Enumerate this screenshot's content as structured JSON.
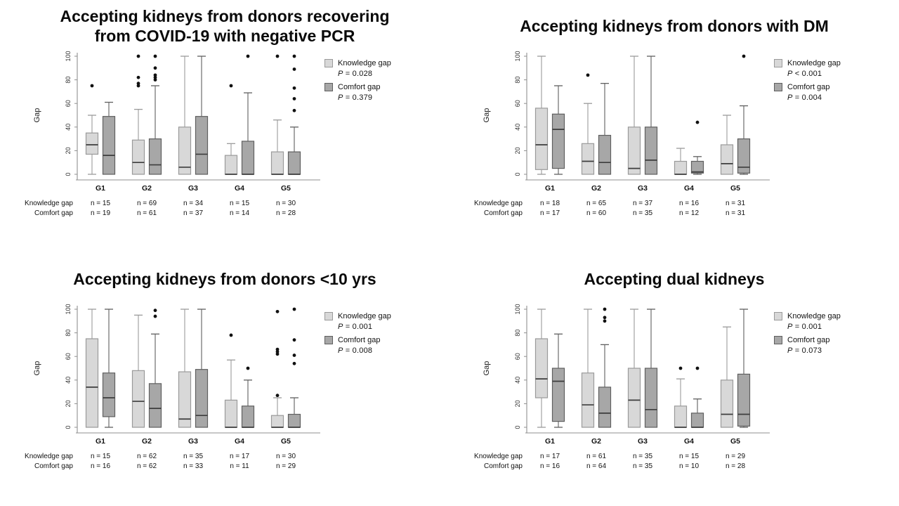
{
  "colors": {
    "knowledge_fill": "#d8d8d8",
    "knowledge_stroke": "#9a9a9a",
    "comfort_fill": "#a7a7a7",
    "comfort_stroke": "#5f5f5f",
    "median": "#3d3d3d",
    "outlier": "#111111",
    "axis": "#8f8f8f",
    "text": "#111111"
  },
  "chart_data": [
    {
      "type": "boxplot",
      "title": "Accepting kidneys from donors recovering from COVID-19 with negative PCR",
      "ylabel": "Gap",
      "ylim": [
        0,
        100
      ],
      "yticks": [
        0,
        20,
        40,
        60,
        80,
        100
      ],
      "grid": false,
      "legend_position": "right",
      "categories": [
        "G1",
        "G2",
        "G3",
        "G4",
        "G5"
      ],
      "series": [
        {
          "name": "Knowledge gap",
          "p_label": "P = 0.028",
          "n": [
            15,
            69,
            34,
            15,
            30
          ],
          "boxes": [
            {
              "low": 0,
              "q1": 17,
              "med": 25,
              "q3": 35,
              "high": 50,
              "outliers": [
                75
              ]
            },
            {
              "low": 0,
              "q1": 0,
              "med": 10,
              "q3": 29,
              "high": 55,
              "outliers": [
                75,
                77,
                82,
                100
              ]
            },
            {
              "low": 0,
              "q1": 0,
              "med": 6,
              "q3": 40,
              "high": 100,
              "outliers": []
            },
            {
              "low": 0,
              "q1": 0,
              "med": 0,
              "q3": 16,
              "high": 26,
              "outliers": [
                75
              ]
            },
            {
              "low": 0,
              "q1": 0,
              "med": 0,
              "q3": 19,
              "high": 46,
              "outliers": [
                100
              ]
            }
          ]
        },
        {
          "name": "Comfort gap",
          "p_label": "P = 0.379",
          "n": [
            19,
            61,
            37,
            14,
            28
          ],
          "boxes": [
            {
              "low": 0,
              "q1": 0,
              "med": 16,
              "q3": 49,
              "high": 61,
              "outliers": []
            },
            {
              "low": 0,
              "q1": 0,
              "med": 8,
              "q3": 30,
              "high": 75,
              "outliers": [
                80,
                82,
                84,
                90,
                100
              ]
            },
            {
              "low": 0,
              "q1": 0,
              "med": 17,
              "q3": 49,
              "high": 100,
              "outliers": []
            },
            {
              "low": 0,
              "q1": 0,
              "med": 0,
              "q3": 28,
              "high": 69,
              "outliers": [
                100
              ]
            },
            {
              "low": 0,
              "q1": 0,
              "med": 0,
              "q3": 19,
              "high": 40,
              "outliers": [
                54,
                64,
                73,
                89,
                100
              ]
            }
          ]
        }
      ],
      "n_rows": [
        {
          "label": "Knowledge gap",
          "values": [
            "n = 15",
            "n = 69",
            "n = 34",
            "n = 15",
            "n = 30"
          ]
        },
        {
          "label": "Comfort gap",
          "values": [
            "n = 19",
            "n = 61",
            "n = 37",
            "n = 14",
            "n = 28"
          ]
        }
      ]
    },
    {
      "type": "boxplot",
      "title": "Accepting kidneys from donors with DM",
      "ylabel": "Gap",
      "ylim": [
        0,
        100
      ],
      "yticks": [
        0,
        20,
        40,
        60,
        80,
        100
      ],
      "grid": false,
      "legend_position": "right",
      "categories": [
        "G1",
        "G2",
        "G3",
        "G4",
        "G5"
      ],
      "series": [
        {
          "name": "Knowledge gap",
          "p_label": "P < 0.001",
          "n": [
            18,
            65,
            37,
            16,
            31
          ],
          "boxes": [
            {
              "low": 0,
              "q1": 4,
              "med": 25,
              "q3": 56,
              "high": 100,
              "outliers": []
            },
            {
              "low": 0,
              "q1": 0,
              "med": 11,
              "q3": 26,
              "high": 60,
              "outliers": [
                84
              ]
            },
            {
              "low": 0,
              "q1": 0,
              "med": 5,
              "q3": 40,
              "high": 100,
              "outliers": []
            },
            {
              "low": 0,
              "q1": 0,
              "med": 0,
              "q3": 11,
              "high": 22,
              "outliers": []
            },
            {
              "low": 0,
              "q1": 0,
              "med": 9,
              "q3": 25,
              "high": 50,
              "outliers": []
            }
          ]
        },
        {
          "name": "Comfort gap",
          "p_label": "P = 0.004",
          "n": [
            17,
            60,
            35,
            12,
            31
          ],
          "boxes": [
            {
              "low": 0,
              "q1": 5,
              "med": 38,
              "q3": 51,
              "high": 75,
              "outliers": []
            },
            {
              "low": 0,
              "q1": 0,
              "med": 10,
              "q3": 33,
              "high": 77,
              "outliers": []
            },
            {
              "low": 0,
              "q1": 0,
              "med": 12,
              "q3": 40,
              "high": 100,
              "outliers": []
            },
            {
              "low": 0,
              "q1": 1,
              "med": 2,
              "q3": 11,
              "high": 15,
              "outliers": [
                44
              ]
            },
            {
              "low": 0,
              "q1": 1,
              "med": 6,
              "q3": 30,
              "high": 58,
              "outliers": [
                100
              ]
            }
          ]
        }
      ],
      "n_rows": [
        {
          "label": "Knowledge gap",
          "values": [
            "n = 18",
            "n = 65",
            "n = 37",
            "n = 16",
            "n = 31"
          ]
        },
        {
          "label": "Comfort gap",
          "values": [
            "n = 17",
            "n = 60",
            "n = 35",
            "n = 12",
            "n = 31"
          ]
        }
      ]
    },
    {
      "type": "boxplot",
      "title": "Accepting kidneys from donors <10 yrs",
      "ylabel": "Gap",
      "ylim": [
        0,
        100
      ],
      "yticks": [
        0,
        20,
        40,
        60,
        80,
        100
      ],
      "grid": false,
      "legend_position": "right",
      "categories": [
        "G1",
        "G2",
        "G3",
        "G4",
        "G5"
      ],
      "series": [
        {
          "name": "Knowledge gap",
          "p_label": "P = 0.001",
          "n": [
            15,
            62,
            35,
            17,
            30
          ],
          "boxes": [
            {
              "low": 0,
              "q1": 0,
              "med": 34,
              "q3": 75,
              "high": 100,
              "outliers": []
            },
            {
              "low": 0,
              "q1": 0,
              "med": 22,
              "q3": 48,
              "high": 95,
              "outliers": []
            },
            {
              "low": 0,
              "q1": 0,
              "med": 7,
              "q3": 47,
              "high": 100,
              "outliers": []
            },
            {
              "low": 0,
              "q1": 0,
              "med": 0,
              "q3": 23,
              "high": 57,
              "outliers": [
                78
              ]
            },
            {
              "low": 0,
              "q1": 0,
              "med": 0,
              "q3": 10,
              "high": 25,
              "outliers": [
                27,
                62,
                64,
                66,
                98
              ]
            }
          ]
        },
        {
          "name": "Comfort gap",
          "p_label": "P = 0.008",
          "n": [
            16,
            62,
            33,
            11,
            29
          ],
          "boxes": [
            {
              "low": 0,
              "q1": 9,
              "med": 25,
              "q3": 46,
              "high": 100,
              "outliers": []
            },
            {
              "low": 0,
              "q1": 0,
              "med": 16,
              "q3": 37,
              "high": 79,
              "outliers": [
                94,
                99
              ]
            },
            {
              "low": 0,
              "q1": 0,
              "med": 10,
              "q3": 49,
              "high": 100,
              "outliers": []
            },
            {
              "low": 0,
              "q1": 0,
              "med": 0,
              "q3": 18,
              "high": 40,
              "outliers": [
                50
              ]
            },
            {
              "low": 0,
              "q1": 0,
              "med": 0,
              "q3": 11,
              "high": 25,
              "outliers": [
                54,
                61,
                74,
                100
              ]
            }
          ]
        }
      ],
      "n_rows": [
        {
          "label": "Knowledge gap",
          "values": [
            "n = 15",
            "n = 62",
            "n = 35",
            "n = 17",
            "n = 30"
          ]
        },
        {
          "label": "Comfort gap",
          "values": [
            "n = 16",
            "n = 62",
            "n = 33",
            "n = 11",
            "n = 29"
          ]
        }
      ]
    },
    {
      "type": "boxplot",
      "title": "Accepting dual kidneys",
      "ylabel": "Gap",
      "ylim": [
        0,
        100
      ],
      "yticks": [
        0,
        20,
        40,
        60,
        80,
        100
      ],
      "grid": false,
      "legend_position": "right",
      "categories": [
        "G1",
        "G2",
        "G3",
        "G4",
        "G5"
      ],
      "series": [
        {
          "name": "Knowledge gap",
          "p_label": "P = 0.001",
          "n": [
            17,
            61,
            35,
            15,
            29
          ],
          "boxes": [
            {
              "low": 0,
              "q1": 25,
              "med": 41,
              "q3": 75,
              "high": 100,
              "outliers": []
            },
            {
              "low": 0,
              "q1": 0,
              "med": 19,
              "q3": 46,
              "high": 100,
              "outliers": []
            },
            {
              "low": 0,
              "q1": 0,
              "med": 23,
              "q3": 50,
              "high": 100,
              "outliers": []
            },
            {
              "low": 0,
              "q1": 0,
              "med": 0,
              "q3": 18,
              "high": 41,
              "outliers": [
                50
              ]
            },
            {
              "low": 0,
              "q1": 0,
              "med": 11,
              "q3": 40,
              "high": 85,
              "outliers": []
            }
          ]
        },
        {
          "name": "Comfort gap",
          "p_label": "P = 0.073",
          "n": [
            16,
            64,
            35,
            10,
            28
          ],
          "boxes": [
            {
              "low": 0,
              "q1": 5,
              "med": 39,
              "q3": 50,
              "high": 79,
              "outliers": []
            },
            {
              "low": 0,
              "q1": 0,
              "med": 12,
              "q3": 34,
              "high": 70,
              "outliers": [
                90,
                93,
                100
              ]
            },
            {
              "low": 0,
              "q1": 0,
              "med": 15,
              "q3": 50,
              "high": 100,
              "outliers": []
            },
            {
              "low": 0,
              "q1": 0,
              "med": 0,
              "q3": 12,
              "high": 24,
              "outliers": [
                50
              ]
            },
            {
              "low": 0,
              "q1": 1,
              "med": 11,
              "q3": 45,
              "high": 100,
              "outliers": []
            }
          ]
        }
      ],
      "n_rows": [
        {
          "label": "Knowledge gap",
          "values": [
            "n = 17",
            "n = 61",
            "n = 35",
            "n = 15",
            "n = 29"
          ]
        },
        {
          "label": "Comfort gap",
          "values": [
            "n = 16",
            "n = 64",
            "n = 35",
            "n = 10",
            "n = 28"
          ]
        }
      ]
    }
  ]
}
